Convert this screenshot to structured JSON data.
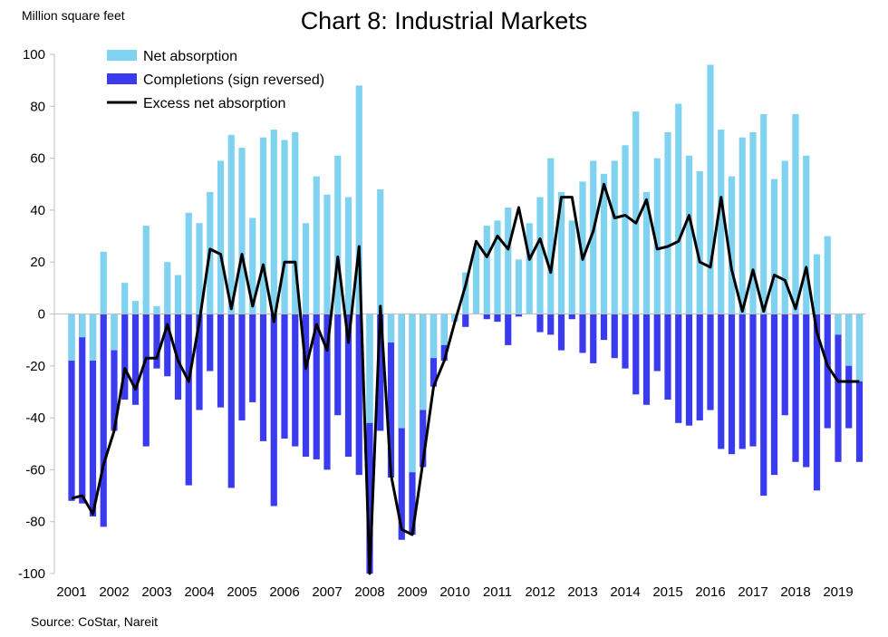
{
  "chart_data": {
    "type": "bar",
    "title": "Chart 8: Industrial Markets",
    "ylabel": "Million square feet",
    "source": "Source: CoStar, Nareit",
    "ylim": [
      -100,
      100
    ],
    "yticks": [
      100,
      80,
      60,
      40,
      20,
      0,
      -20,
      -40,
      -60,
      -80,
      -100
    ],
    "xtick_labels": [
      "2001",
      "2002",
      "2003",
      "2004",
      "2005",
      "2006",
      "2007",
      "2008",
      "2009",
      "2010",
      "2011",
      "2012",
      "2013",
      "2014",
      "2015",
      "2016",
      "2017",
      "2018",
      "2019"
    ],
    "quarters": [
      "2001Q1",
      "2001Q2",
      "2001Q3",
      "2001Q4",
      "2002Q1",
      "2002Q2",
      "2002Q3",
      "2002Q4",
      "2003Q1",
      "2003Q2",
      "2003Q3",
      "2003Q4",
      "2004Q1",
      "2004Q2",
      "2004Q3",
      "2004Q4",
      "2005Q1",
      "2005Q2",
      "2005Q3",
      "2005Q4",
      "2006Q1",
      "2006Q2",
      "2006Q3",
      "2006Q4",
      "2007Q1",
      "2007Q2",
      "2007Q3",
      "2007Q4",
      "2008Q1",
      "2008Q2",
      "2008Q3",
      "2008Q4",
      "2009Q1",
      "2009Q2",
      "2009Q3",
      "2009Q4",
      "2010Q1",
      "2010Q2",
      "2010Q3",
      "2010Q4",
      "2011Q1",
      "2011Q2",
      "2011Q3",
      "2011Q4",
      "2012Q1",
      "2012Q2",
      "2012Q3",
      "2012Q4",
      "2013Q1",
      "2013Q2",
      "2013Q3",
      "2013Q4",
      "2014Q1",
      "2014Q2",
      "2014Q3",
      "2014Q4",
      "2015Q1",
      "2015Q2",
      "2015Q3",
      "2015Q4",
      "2016Q1",
      "2016Q2",
      "2016Q3",
      "2016Q4",
      "2017Q1",
      "2017Q2",
      "2017Q3",
      "2017Q4",
      "2018Q1",
      "2018Q2",
      "2018Q3",
      "2018Q4",
      "2019Q1",
      "2019Q2",
      "2019Q3"
    ],
    "legend_position": "top-left",
    "grid": false,
    "series": [
      {
        "name": "Net absorption",
        "type": "bar",
        "color": "#7fd3f0",
        "values": [
          -18,
          -9,
          -18,
          24,
          -14,
          12,
          5,
          34,
          3,
          20,
          15,
          39,
          35,
          47,
          59,
          69,
          64,
          37,
          68,
          71,
          67,
          70,
          35,
          53,
          46,
          61,
          45,
          88,
          -42,
          48,
          -11,
          -44,
          -61,
          -37,
          -17,
          -12,
          -3,
          16,
          26,
          34,
          36,
          41,
          21,
          35,
          45,
          60,
          47,
          36,
          51,
          59,
          54,
          59,
          65,
          78,
          47,
          60,
          70,
          81,
          61,
          55,
          96,
          71,
          53,
          68,
          70,
          77,
          52,
          59,
          77,
          61,
          23,
          30,
          -8,
          -20,
          -26
        ]
      },
      {
        "name": "Completions (sign reversed)",
        "type": "bar",
        "color": "#3a3aef",
        "values": [
          -72,
          -73,
          -78,
          -82,
          -45,
          -33,
          -35,
          -51,
          -21,
          -24,
          -33,
          -66,
          -37,
          -22,
          -36,
          -67,
          -41,
          -34,
          -49,
          -74,
          -48,
          -51,
          -55,
          -56,
          -60,
          -39,
          -55,
          -62,
          -100,
          -45,
          -63,
          -87,
          -85,
          -59,
          -28,
          -18,
          -3,
          -5,
          0,
          -2,
          -3,
          -12,
          -1,
          0,
          -7,
          -8,
          -14,
          -2,
          -15,
          -19,
          -10,
          -17,
          -21,
          -31,
          -35,
          -22,
          -33,
          -42,
          -43,
          -41,
          -37,
          -52,
          -54,
          -52,
          -51,
          -70,
          -62,
          -39,
          -57,
          -59,
          -68,
          -44,
          -57,
          -44,
          -57
        ]
      },
      {
        "name": "Excess net absorption",
        "type": "line",
        "color": "#000000",
        "values": [
          -71,
          -70,
          -77,
          -58,
          -45,
          -21,
          -29,
          -17,
          -17,
          -4,
          -18,
          -26,
          -3,
          25,
          23,
          2,
          23,
          3,
          19,
          -3,
          20,
          20,
          -21,
          -4,
          -14,
          22,
          -11,
          26,
          -100,
          3,
          -62,
          -83,
          -85,
          -57,
          -28,
          -18,
          -3,
          11,
          28,
          22,
          30,
          25,
          41,
          21,
          29,
          16,
          45,
          45,
          21,
          32,
          50,
          37,
          38,
          35,
          44,
          25,
          26,
          28,
          38,
          20,
          18,
          45,
          17,
          1,
          17,
          1,
          15,
          13,
          2,
          18,
          -7,
          -20,
          -26,
          -26,
          -26
        ]
      }
    ]
  }
}
